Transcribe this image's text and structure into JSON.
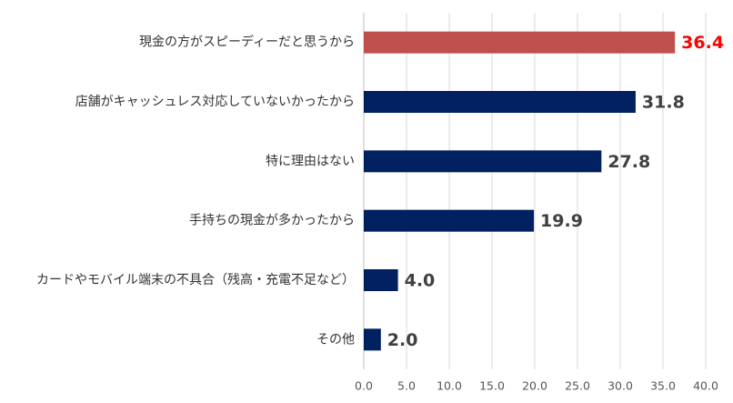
{
  "chart_data": {
    "type": "hbar",
    "categories": [
      "現金の方がスピーディーだと思うから",
      "店舗がキャッシュレス対応していないかったから",
      "特に理由はない",
      "手持ちの現金が多かったから",
      "カードやモバイル端末の不具合（残高・充電不足など）",
      "その他"
    ],
    "values": [
      36.4,
      31.8,
      27.8,
      19.9,
      4.0,
      2.0
    ],
    "value_labels": [
      "36.4",
      "31.8",
      "27.8",
      "19.9",
      "4.0",
      "2.0"
    ],
    "colors": [
      "#c0504d",
      "#002060",
      "#002060",
      "#002060",
      "#002060",
      "#002060"
    ],
    "label_colors": [
      "#ff0000",
      "#404040",
      "#404040",
      "#404040",
      "#404040",
      "#404040"
    ],
    "xlim": [
      0,
      40
    ],
    "xticks": [
      {
        "value": 0,
        "label": "0.0"
      },
      {
        "value": 5,
        "label": "5.0"
      },
      {
        "value": 10,
        "label": "10.0"
      },
      {
        "value": 15,
        "label": "15.0"
      },
      {
        "value": 20,
        "label": "20.0"
      },
      {
        "value": 25,
        "label": "25.0"
      },
      {
        "value": 30,
        "label": "30.0"
      },
      {
        "value": 35,
        "label": "35.0"
      },
      {
        "value": 40,
        "label": "40.0"
      }
    ],
    "grid": true
  }
}
